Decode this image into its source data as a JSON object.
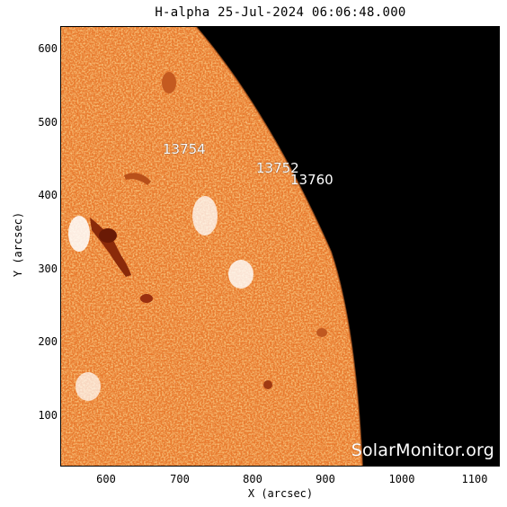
{
  "title": "H-alpha 25-Jul-2024 06:06:48.000",
  "x_axis": {
    "label": "X (arcsec)",
    "ticks": [
      "600",
      "700",
      "800",
      "900",
      "1000",
      "1100"
    ]
  },
  "y_axis": {
    "label": "Y (arcsec)",
    "ticks": [
      "600",
      "500",
      "400",
      "300",
      "200",
      "100"
    ]
  },
  "regions": [
    "13754",
    "13752",
    "13760"
  ],
  "watermark": "SolarMonitor.org",
  "colors": {
    "background": "#000000",
    "disk": "#e87a2e",
    "bright": "#ffffff",
    "dark": "#8a2a0a"
  }
}
